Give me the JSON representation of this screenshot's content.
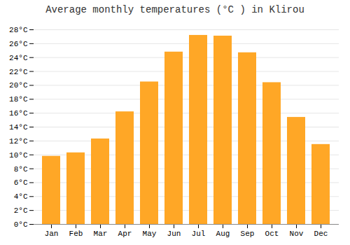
{
  "chart_data": {
    "type": "bar",
    "title": "Average monthly temperatures (°C ) in Klirou",
    "categories": [
      "Jan",
      "Feb",
      "Mar",
      "Apr",
      "May",
      "Jun",
      "Jul",
      "Aug",
      "Sep",
      "Oct",
      "Nov",
      "Dec"
    ],
    "values": [
      9.8,
      10.3,
      12.3,
      16.2,
      20.5,
      24.8,
      27.2,
      27.1,
      24.7,
      20.4,
      15.4,
      11.5
    ],
    "color": "#FFA726",
    "ylim": [
      0,
      28
    ],
    "yticks": [
      {
        "value": 0,
        "label": "0°C"
      },
      {
        "value": 2,
        "label": "2°C"
      },
      {
        "value": 4,
        "label": "4°C"
      },
      {
        "value": 6,
        "label": "6°C"
      },
      {
        "value": 8,
        "label": "8°C"
      },
      {
        "value": 10,
        "label": "10°C"
      },
      {
        "value": 12,
        "label": "12°C"
      },
      {
        "value": 14,
        "label": "14°C"
      },
      {
        "value": 16,
        "label": "16°C"
      },
      {
        "value": 18,
        "label": "18°C"
      },
      {
        "value": 20,
        "label": "20°C"
      },
      {
        "value": 22,
        "label": "22°C"
      },
      {
        "value": 24,
        "label": "24°C"
      },
      {
        "value": 26,
        "label": "26°C"
      },
      {
        "value": 28,
        "label": "28°C"
      }
    ],
    "grid": true
  }
}
